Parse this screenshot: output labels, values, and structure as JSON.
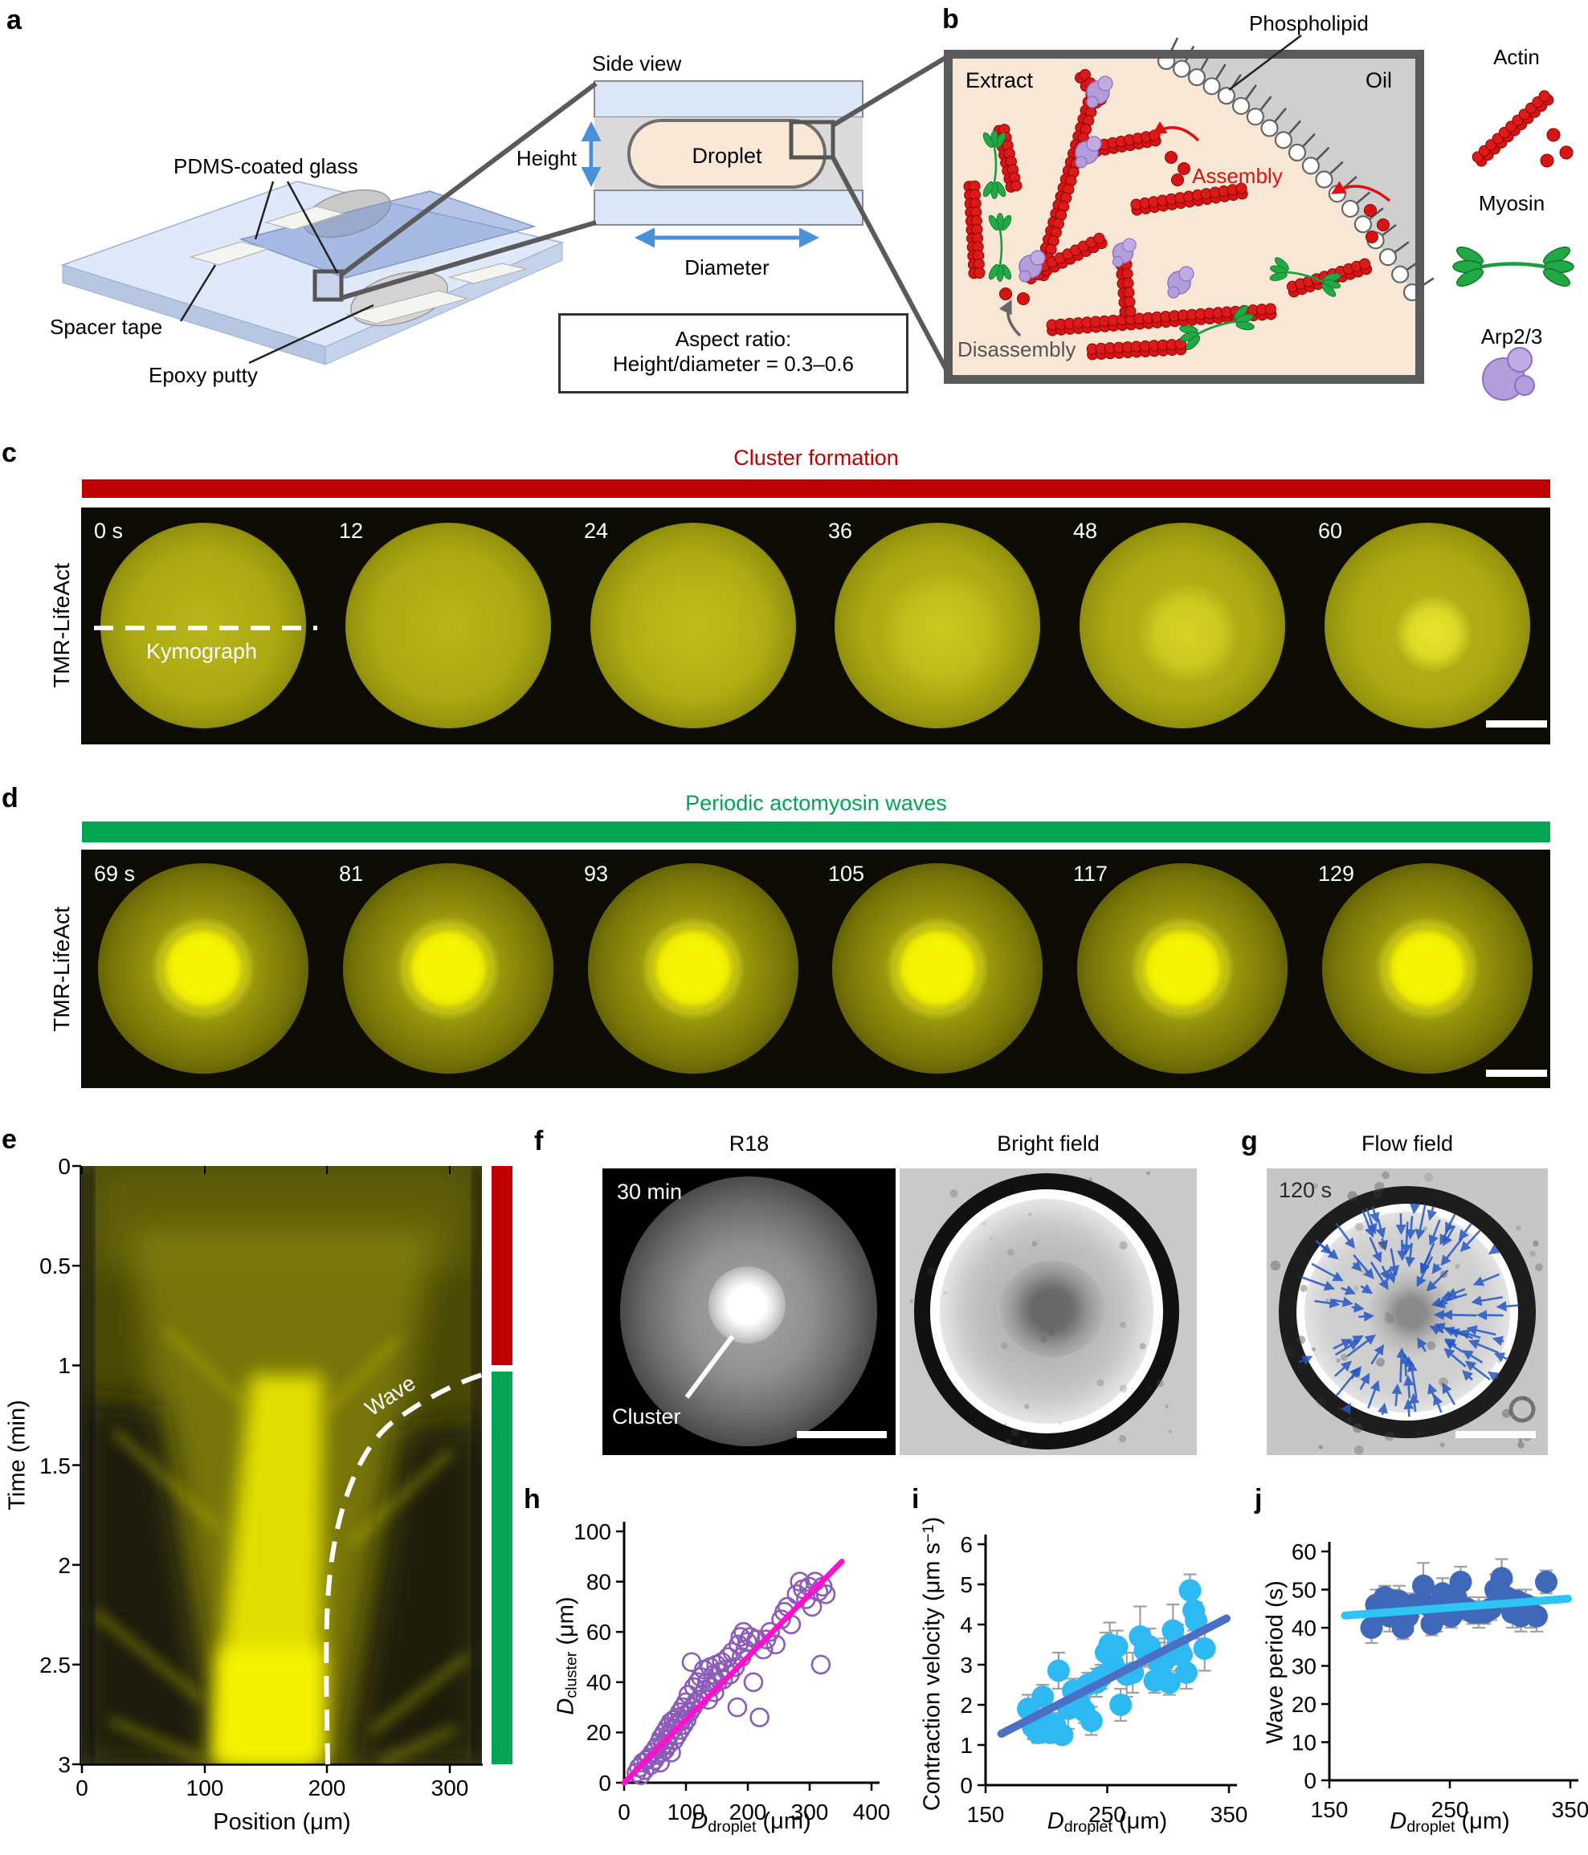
{
  "panel_a": {
    "label": "a",
    "pdms": "PDMS-coated glass",
    "spacer": "Spacer tape",
    "epoxy": "Epoxy putty",
    "side_view": "Side view",
    "height": "Height",
    "droplet": "Droplet",
    "diameter": "Diameter",
    "aspect_line1": "Aspect ratio:",
    "aspect_line2": "Height/diameter = 0.3–0.6"
  },
  "panel_b": {
    "label": "b",
    "phospholipid": "Phospholipid",
    "extract": "Extract",
    "oil": "Oil",
    "assembly": "Assembly",
    "disassembly": "Disassembly",
    "legend": [
      "Actin",
      "Myosin",
      "Arp2/3"
    ]
  },
  "panel_c": {
    "label": "c",
    "title": "Cluster formation",
    "channel": "TMR-LifeAct",
    "times": [
      "0 s",
      "12",
      "24",
      "36",
      "48",
      "60"
    ],
    "kymograph_label": "Kymograph"
  },
  "panel_d": {
    "label": "d",
    "title": "Periodic actomyosin waves",
    "channel": "TMR-LifeAct",
    "times": [
      "69 s",
      "81",
      "93",
      "105",
      "117",
      "129"
    ]
  },
  "panel_e": {
    "label": "e",
    "ylabel": "Time (min)",
    "xlabel": "Position (μm)",
    "yticks": [
      "0",
      "0.5",
      "1",
      "1.5",
      "2",
      "2.5",
      "3"
    ],
    "xticks": [
      "0",
      "100",
      "200",
      "300"
    ],
    "wave_label": "Wave"
  },
  "panel_f": {
    "label": "f",
    "title_left": "R18",
    "title_right": "Bright field",
    "time": "30 min",
    "cluster_label": "Cluster"
  },
  "panel_g": {
    "label": "g",
    "title": "Flow field",
    "time": "120 s"
  },
  "panel_h": {
    "label": "h"
  },
  "panel_i": {
    "label": "i"
  },
  "panel_j": {
    "label": "j"
  },
  "colors": {
    "cluster_bar": "#c00000",
    "wave_bar": "#00a651",
    "actin_red": "#d61414",
    "myosin_green": "#1fa34a",
    "arp_purple": "#b39ddb",
    "assembly_red": "#e01010",
    "disassembly_gray": "#555555",
    "arrow_blue": "#4a90d8",
    "flow_arrow_blue": "#2457c5",
    "h_marker": "#8b5cb8",
    "h_line": "#ff0fd0",
    "i_marker": "#2eb9f2",
    "i_line": "#4a6fc4",
    "j_marker": "#3f68b8",
    "j_line": "#2ec4f4"
  },
  "chart_data": [
    {
      "id": "h",
      "type": "scatter",
      "xlabel": {
        "var": "D",
        "sub": "droplet",
        "unit": " (μm)"
      },
      "ylabel": {
        "var": "D",
        "sub": "cluster",
        "unit": " (μm)"
      },
      "xlim": [
        0,
        400
      ],
      "ylim": [
        0,
        100
      ],
      "xticks": [
        0,
        100,
        200,
        300,
        400
      ],
      "yticks": [
        0,
        20,
        40,
        60,
        80,
        100
      ],
      "marker": {
        "style": "open",
        "color": "#8b5cb8",
        "r": 11
      },
      "fit_line": {
        "color": "#ff0fd0",
        "x1": 0,
        "y1": 0,
        "x2": 352,
        "y2": 88,
        "width": 7
      },
      "points": [
        [
          20,
          4
        ],
        [
          24,
          6
        ],
        [
          27,
          3
        ],
        [
          30,
          8
        ],
        [
          33,
          5
        ],
        [
          36,
          9
        ],
        [
          40,
          10
        ],
        [
          43,
          7
        ],
        [
          46,
          12
        ],
        [
          49,
          9
        ],
        [
          52,
          14
        ],
        [
          54,
          11
        ],
        [
          57,
          16
        ],
        [
          58,
          8
        ],
        [
          60,
          18
        ],
        [
          61,
          12
        ],
        [
          63,
          15
        ],
        [
          65,
          20
        ],
        [
          66,
          13
        ],
        [
          68,
          17
        ],
        [
          70,
          22
        ],
        [
          71,
          15
        ],
        [
          73,
          19
        ],
        [
          75,
          24
        ],
        [
          76,
          12
        ],
        [
          78,
          21
        ],
        [
          80,
          25
        ],
        [
          81,
          17
        ],
        [
          83,
          23
        ],
        [
          85,
          26
        ],
        [
          86,
          19
        ],
        [
          88,
          24
        ],
        [
          90,
          28
        ],
        [
          91,
          21
        ],
        [
          93,
          25
        ],
        [
          95,
          30
        ],
        [
          96,
          23
        ],
        [
          98,
          27
        ],
        [
          100,
          32
        ],
        [
          101,
          25
        ],
        [
          104,
          35
        ],
        [
          106,
          28
        ],
        [
          109,
          48
        ],
        [
          111,
          30
        ],
        [
          113,
          38
        ],
        [
          116,
          32
        ],
        [
          119,
          40
        ],
        [
          121,
          33
        ],
        [
          124,
          42
        ],
        [
          126,
          35
        ],
        [
          129,
          45
        ],
        [
          131,
          37
        ],
        [
          134,
          40
        ],
        [
          136,
          33
        ],
        [
          139,
          46
        ],
        [
          141,
          38
        ],
        [
          144,
          43
        ],
        [
          146,
          36
        ],
        [
          149,
          47
        ],
        [
          151,
          40
        ],
        [
          154,
          44
        ],
        [
          158,
          48
        ],
        [
          160,
          41
        ],
        [
          164,
          45
        ],
        [
          168,
          50
        ],
        [
          171,
          43
        ],
        [
          175,
          52
        ],
        [
          179,
          46
        ],
        [
          183,
          30
        ],
        [
          185,
          55
        ],
        [
          188,
          58
        ],
        [
          190,
          50
        ],
        [
          193,
          60
        ],
        [
          196,
          53
        ],
        [
          199,
          56
        ],
        [
          204,
          58
        ],
        [
          209,
          40
        ],
        [
          214,
          57
        ],
        [
          219,
          26
        ],
        [
          225,
          53
        ],
        [
          230,
          57
        ],
        [
          236,
          60
        ],
        [
          245,
          55
        ],
        [
          254,
          65
        ],
        [
          259,
          68
        ],
        [
          264,
          70
        ],
        [
          270,
          63
        ],
        [
          279,
          75
        ],
        [
          284,
          80
        ],
        [
          289,
          77
        ],
        [
          294,
          73
        ],
        [
          299,
          78
        ],
        [
          304,
          70
        ],
        [
          309,
          80
        ],
        [
          314,
          76
        ],
        [
          318,
          47
        ],
        [
          321,
          78
        ],
        [
          326,
          75
        ]
      ]
    },
    {
      "id": "i",
      "type": "scatter",
      "xlabel": {
        "var": "D",
        "sub": "droplet",
        "unit": " (μm)"
      },
      "ylabel": {
        "pre": "Contraction velocity (μm s",
        "sup": "−1",
        "post": ")"
      },
      "xlim": [
        150,
        350
      ],
      "ylim": [
        0,
        6
      ],
      "xticks": [
        150,
        250,
        350
      ],
      "yticks": [
        0,
        1,
        2,
        3,
        4,
        5,
        6
      ],
      "marker": {
        "style": "filled",
        "color": "#2eb9f2",
        "r": 14
      },
      "errorbar_color": "#a0a0a0",
      "fit_line": {
        "color": "#4a6fc4",
        "x1": 163,
        "y1": 1.28,
        "x2": 348,
        "y2": 4.15,
        "width": 10
      },
      "points": [
        [
          185,
          1.9,
          0.35
        ],
        [
          189,
          1.45,
          0.3
        ],
        [
          193,
          1.3,
          0.25
        ],
        [
          197,
          2.2,
          0.3
        ],
        [
          200,
          1.55,
          0.35
        ],
        [
          203,
          1.3,
          0.2
        ],
        [
          207,
          1.5,
          0.3
        ],
        [
          210,
          2.85,
          0.45
        ],
        [
          213,
          1.25,
          0.2
        ],
        [
          218,
          1.9,
          0.5
        ],
        [
          222,
          2.35,
          0.3
        ],
        [
          227,
          2.05,
          0.35
        ],
        [
          231,
          1.85,
          0.3
        ],
        [
          234,
          2.5,
          0.3
        ],
        [
          237,
          1.6,
          0.35
        ],
        [
          241,
          2.55,
          0.35
        ],
        [
          245,
          2.7,
          0.3
        ],
        [
          249,
          3.3,
          0.5
        ],
        [
          252,
          3.5,
          0.55
        ],
        [
          255,
          3.0,
          0.3
        ],
        [
          258,
          3.45,
          0.4
        ],
        [
          261,
          2.0,
          0.4
        ],
        [
          266,
          2.75,
          0.55
        ],
        [
          271,
          2.8,
          0.5
        ],
        [
          277,
          3.7,
          0.75
        ],
        [
          281,
          3.35,
          0.4
        ],
        [
          285,
          3.45,
          0.45
        ],
        [
          289,
          2.6,
          0.3
        ],
        [
          293,
          3.05,
          0.5
        ],
        [
          297,
          3.1,
          0.55
        ],
        [
          301,
          2.55,
          0.3
        ],
        [
          304,
          3.85,
          0.65
        ],
        [
          308,
          3.5,
          0.5
        ],
        [
          311,
          3.25,
          0.35
        ],
        [
          315,
          2.8,
          0.4
        ],
        [
          318,
          4.85,
          0.4
        ],
        [
          321,
          4.35,
          0.5
        ],
        [
          323,
          4.1,
          0.45
        ],
        [
          330,
          3.4,
          0.55
        ]
      ]
    },
    {
      "id": "j",
      "type": "scatter",
      "xlabel": {
        "var": "D",
        "sub": "droplet",
        "unit": " (μm)"
      },
      "ylabel": {
        "pre": "Wave period (s)",
        "sup": "",
        "post": ""
      },
      "xlim": [
        150,
        350
      ],
      "ylim": [
        0,
        60
      ],
      "xticks": [
        150,
        250,
        350
      ],
      "yticks": [
        0,
        10,
        20,
        30,
        40,
        50,
        60
      ],
      "marker": {
        "style": "filled",
        "color": "#3f68b8",
        "r": 14
      },
      "errorbar_color": "#a0a0a0",
      "fit_line": {
        "color": "#2ec4f4",
        "x1": 163,
        "y1": 43.2,
        "x2": 348,
        "y2": 47.6,
        "width": 10
      },
      "points": [
        [
          185,
          40,
          4
        ],
        [
          189,
          46,
          4
        ],
        [
          193,
          44,
          3
        ],
        [
          196,
          48,
          3
        ],
        [
          200,
          43,
          4
        ],
        [
          204,
          47,
          3
        ],
        [
          208,
          47,
          4
        ],
        [
          211,
          40,
          3
        ],
        [
          215,
          43,
          4
        ],
        [
          220,
          46,
          3
        ],
        [
          228,
          51,
          6
        ],
        [
          231,
          46,
          4
        ],
        [
          235,
          41,
          3
        ],
        [
          239,
          43,
          4
        ],
        [
          244,
          49,
          4
        ],
        [
          248,
          46,
          3
        ],
        [
          251,
          43,
          3
        ],
        [
          255,
          48,
          4
        ],
        [
          259,
          52,
          4
        ],
        [
          264,
          45,
          3
        ],
        [
          269,
          44,
          3
        ],
        [
          274,
          44,
          4
        ],
        [
          279,
          44,
          3
        ],
        [
          284,
          45,
          3
        ],
        [
          288,
          50,
          4
        ],
        [
          293,
          53,
          5
        ],
        [
          297,
          48,
          4
        ],
        [
          302,
          44,
          4
        ],
        [
          306,
          47,
          3
        ],
        [
          309,
          43,
          4
        ],
        [
          313,
          46,
          4
        ],
        [
          317,
          44,
          4
        ],
        [
          322,
          43,
          4
        ],
        [
          330,
          52,
          3
        ]
      ]
    }
  ]
}
